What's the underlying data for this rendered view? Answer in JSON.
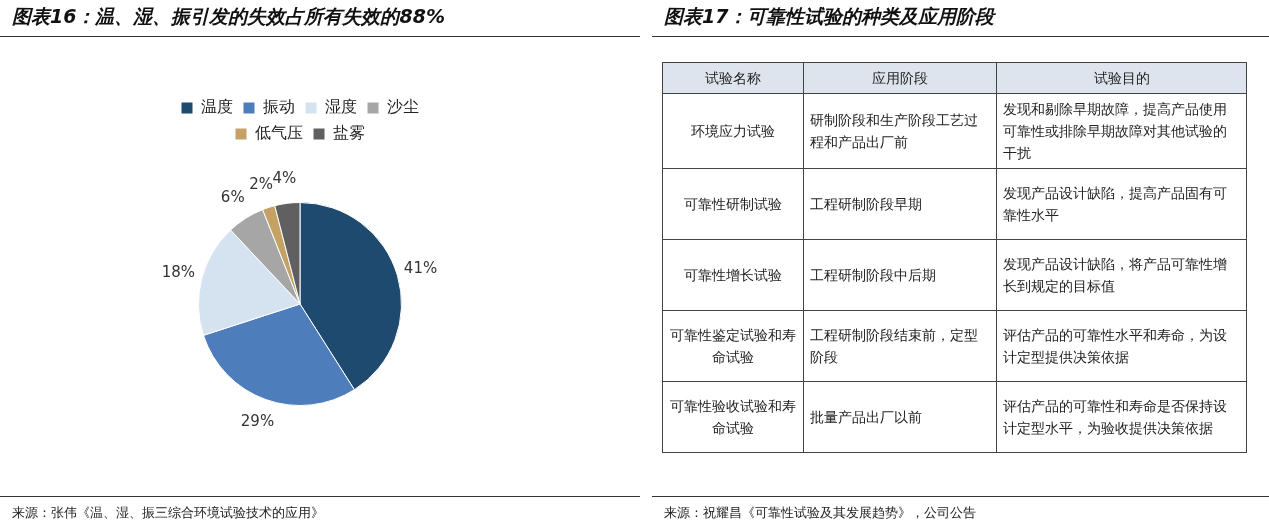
{
  "chart_data": [
    {
      "type": "pie",
      "title": "图表16：温、湿、振引发的失效占所有失效的88%",
      "categories": [
        "温度",
        "振动",
        "湿度",
        "沙尘",
        "低气压",
        "盐雾"
      ],
      "values": [
        41,
        29,
        18,
        6,
        2,
        4
      ],
      "colors": [
        "#1d4a6e",
        "#4e7dbb",
        "#d5e2f0",
        "#a6a6a6",
        "#c4a265",
        "#606060"
      ],
      "value_labels": [
        "41%",
        "29%",
        "18%",
        "6%",
        "2%",
        "4%"
      ],
      "legend": "top",
      "annotations": [
        "来源：张伟《温、湿、振三综合环境试验技术的应用》"
      ]
    },
    {
      "type": "other",
      "title": "图表17：可靠性试验的种类及应用阶段",
      "annotations": [
        "试验名称",
        "应用阶段",
        "试验目的",
        "环境应力试验",
        "研制阶段和生产阶段工艺过程和产品出厂前",
        "发现和剔除早期故障，提高产品使用可靠性或排除早期故障对其他试验的干扰",
        "可靠性研制试验",
        "工程研制阶段早期",
        "发现产品设计缺陷，提高产品固有可靠性水平",
        "可靠性增长试验",
        "工程研制阶段中后期",
        "发现产品设计缺陷，将产品可靠性增长到规定的目标值",
        "可靠性鉴定试验和寿命试验",
        "工程研制阶段结束前，定型阶段",
        "评估产品的可靠性水平和寿命，为设计定型提供决策依据",
        "可靠性验收试验和寿命试验",
        "批量产品出厂以前",
        "评估产品的可靠性和寿命是否保持设计定型水平，为验收提供决策依据",
        "来源：祝耀昌《可靠性试验及其发展趋势》，公司公告"
      ]
    }
  ]
}
